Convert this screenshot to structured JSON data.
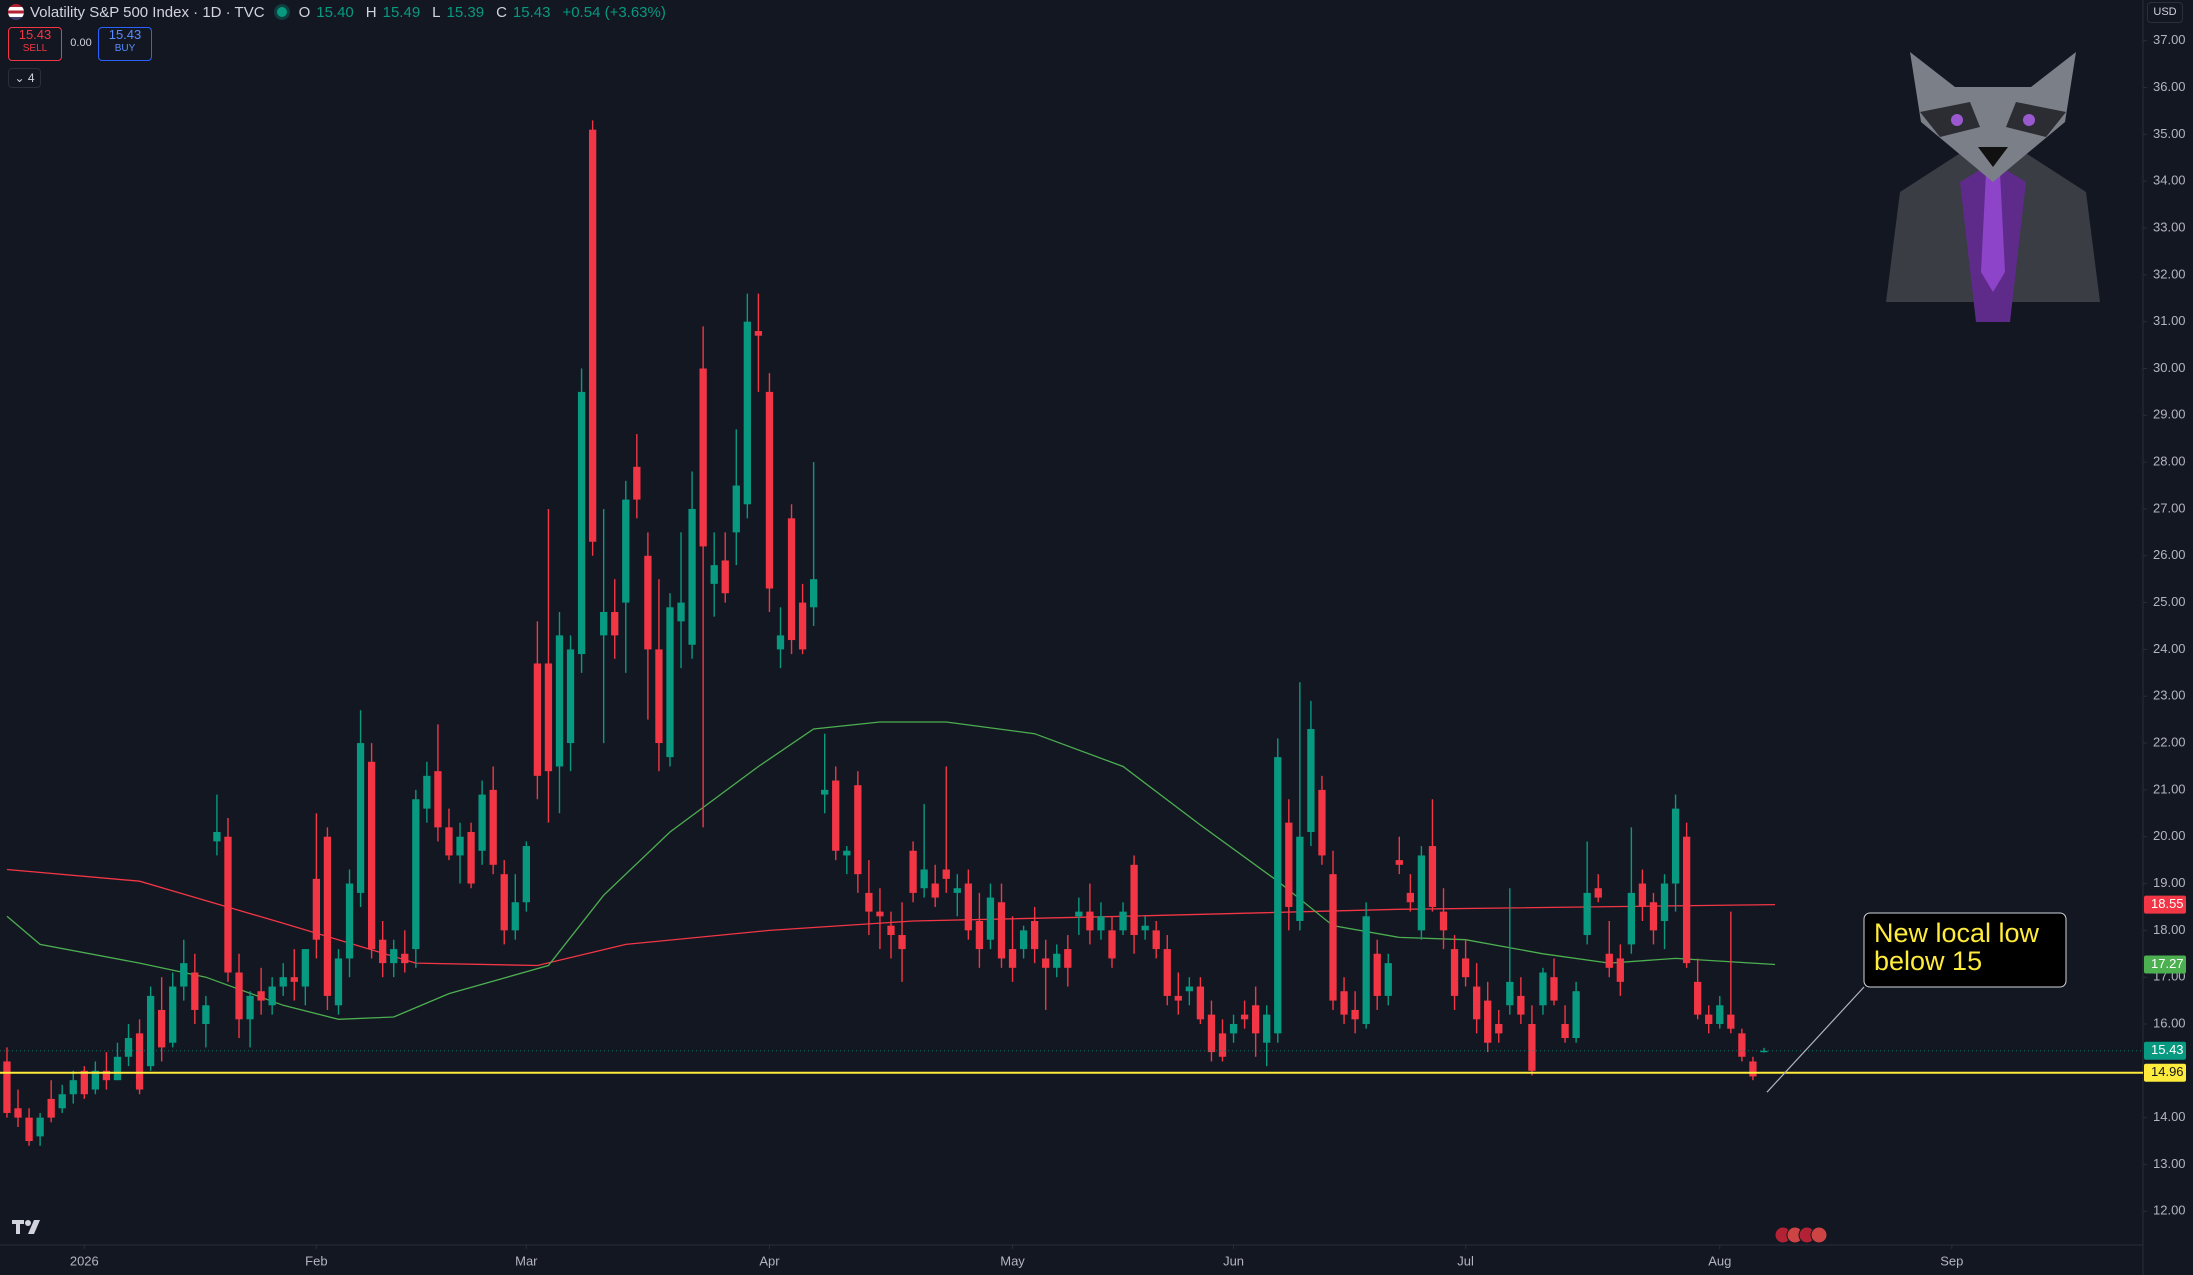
{
  "header": {
    "symbol": "Volatility S&P 500 Index · 1D · TVC",
    "ohlc": [
      {
        "key": "O",
        "value": "15.40"
      },
      {
        "key": "H",
        "value": "15.49"
      },
      {
        "key": "L",
        "value": "15.39"
      },
      {
        "key": "C",
        "value": "15.43"
      }
    ],
    "change": "+0.54 (+3.63%)"
  },
  "trade": {
    "sell_price": "15.43",
    "sell": "SELL",
    "spread": "0.00",
    "buy_price": "15.43",
    "buy": "BUY"
  },
  "indicators_count": "4",
  "currency": "USD",
  "chart_data": {
    "type": "candlestick",
    "up_color": "#089981",
    "down_color": "#f23645",
    "open": [
      15.2,
      14.2,
      14.0,
      13.6,
      14.4,
      14.2,
      14.5,
      15.0,
      14.6,
      15.0,
      14.8,
      15.3,
      15.8,
      15.1,
      16.3,
      15.6,
      16.8,
      17.1,
      16.0,
      19.9,
      20.0,
      17.1,
      16.1,
      16.7,
      16.4,
      16.8,
      17.0,
      16.8,
      19.1,
      20.0,
      16.4,
      17.4,
      18.8,
      21.6,
      17.8,
      17.3,
      17.5,
      17.6,
      20.6,
      21.4,
      20.2,
      19.6,
      20.1,
      19.7,
      21.0,
      19.2,
      18.0,
      18.6,
      23.7,
      23.7,
      21.5,
      22.0,
      23.9,
      35.1,
      24.3,
      24.8,
      25.0,
      27.9,
      26.0,
      24.0,
      21.7,
      24.6,
      24.1,
      30.0,
      25.4,
      25.9,
      26.5,
      27.1,
      30.8,
      29.5,
      24.0,
      26.8,
      25.0,
      24.9,
      20.9,
      21.2,
      19.6,
      21.1,
      18.8,
      18.4,
      18.1,
      17.9,
      19.7,
      18.9,
      19.0,
      19.3,
      18.8,
      19.0,
      18.2,
      17.8,
      18.6,
      17.6,
      17.6,
      18.2,
      17.4,
      17.2,
      17.6,
      18.3,
      18.4,
      18.0,
      18.0,
      18.0,
      19.4,
      18.0,
      18.0,
      17.6,
      16.6,
      16.7,
      16.8,
      16.2,
      15.8,
      15.8,
      16.2,
      16.4,
      15.6,
      15.8,
      20.3,
      18.2,
      20.1,
      21.0,
      19.2,
      16.7,
      16.3,
      16.0,
      17.5,
      16.6,
      19.5,
      18.8,
      18.0,
      19.8,
      18.4,
      17.6,
      17.4,
      16.8,
      16.5,
      16.0,
      16.4,
      16.6,
      16.0,
      16.4,
      17.0,
      16.0,
      15.7,
      17.9,
      18.9,
      17.5,
      17.4,
      17.7,
      19.0,
      18.6,
      18.2,
      19.0,
      20.0,
      16.9,
      16.2,
      16.0,
      16.2,
      15.8,
      15.2,
      15.4
    ],
    "high": [
      15.5,
      14.6,
      14.2,
      14.1,
      14.8,
      14.7,
      15.0,
      15.1,
      15.2,
      15.4,
      15.6,
      16.0,
      16.1,
      16.8,
      17.0,
      17.1,
      17.8,
      17.5,
      16.6,
      20.9,
      20.4,
      17.5,
      16.7,
      17.2,
      17.0,
      17.3,
      17.6,
      17.6,
      20.5,
      20.2,
      17.6,
      19.3,
      22.7,
      22.0,
      18.2,
      17.8,
      18.0,
      21.0,
      21.6,
      22.4,
      20.6,
      20.3,
      20.3,
      21.2,
      21.5,
      19.5,
      19.2,
      19.9,
      24.6,
      27.0,
      24.8,
      24.3,
      30.0,
      35.3,
      27.0,
      25.5,
      27.6,
      28.6,
      26.5,
      25.5,
      25.2,
      26.5,
      27.8,
      30.9,
      26.5,
      26.5,
      28.7,
      31.6,
      31.6,
      29.9,
      24.9,
      27.1,
      25.4,
      28.0,
      22.2,
      21.5,
      19.8,
      21.4,
      19.5,
      18.9,
      18.4,
      18.6,
      19.9,
      20.7,
      19.4,
      21.5,
      19.2,
      19.3,
      18.8,
      19.0,
      19.0,
      18.3,
      18.1,
      18.5,
      17.8,
      17.7,
      17.9,
      18.7,
      19.0,
      18.6,
      18.3,
      18.6,
      19.6,
      18.3,
      18.2,
      17.9,
      17.1,
      17.0,
      17.0,
      16.5,
      16.1,
      16.2,
      16.5,
      16.8,
      16.4,
      22.1,
      20.8,
      23.3,
      22.9,
      21.3,
      19.7,
      17.0,
      16.7,
      18.6,
      17.8,
      17.5,
      20.0,
      19.2,
      19.8,
      20.8,
      18.9,
      17.9,
      17.8,
      17.3,
      16.9,
      16.3,
      18.9,
      17.0,
      16.4,
      17.2,
      17.4,
      16.4,
      16.9,
      19.9,
      19.2,
      18.2,
      17.7,
      20.2,
      19.3,
      18.8,
      19.2,
      20.9,
      20.3,
      17.4,
      16.4,
      16.6,
      18.4,
      15.9,
      15.3,
      15.49
    ],
    "low": [
      14.0,
      13.8,
      13.4,
      13.4,
      13.9,
      14.1,
      14.3,
      14.4,
      14.5,
      14.6,
      14.8,
      15.1,
      14.5,
      15.0,
      15.2,
      15.5,
      16.5,
      16.0,
      15.5,
      19.6,
      16.9,
      15.7,
      15.5,
      16.2,
      16.2,
      16.6,
      16.5,
      16.4,
      17.4,
      16.3,
      16.2,
      17.0,
      18.5,
      17.4,
      17.0,
      17.0,
      17.1,
      17.2,
      20.3,
      19.9,
      19.5,
      19.0,
      18.9,
      19.4,
      19.2,
      17.7,
      17.8,
      18.4,
      20.8,
      20.3,
      20.5,
      21.4,
      23.5,
      26.0,
      22.0,
      23.8,
      23.5,
      26.8,
      22.5,
      21.4,
      21.5,
      23.6,
      23.8,
      20.2,
      24.7,
      25.0,
      25.8,
      26.8,
      29.5,
      24.8,
      23.6,
      23.9,
      23.9,
      24.5,
      20.5,
      19.5,
      19.2,
      18.8,
      17.9,
      17.6,
      17.4,
      16.9,
      18.6,
      18.7,
      18.5,
      18.8,
      18.3,
      17.8,
      17.2,
      17.6,
      17.2,
      16.9,
      17.4,
      17.3,
      16.3,
      17.0,
      16.8,
      17.9,
      17.7,
      17.8,
      17.2,
      17.9,
      17.5,
      17.8,
      17.4,
      16.4,
      16.2,
      16.4,
      16.0,
      15.2,
      15.2,
      15.6,
      15.9,
      15.3,
      15.1,
      15.6,
      18.0,
      18.0,
      19.8,
      19.4,
      16.3,
      16.0,
      15.8,
      15.9,
      16.3,
      16.4,
      19.2,
      18.4,
      17.8,
      18.4,
      17.6,
      16.3,
      16.8,
      15.8,
      15.4,
      15.6,
      16.2,
      16.0,
      14.9,
      16.2,
      16.4,
      15.6,
      15.6,
      17.7,
      18.6,
      17.0,
      16.6,
      17.5,
      18.2,
      17.7,
      17.6,
      18.4,
      17.2,
      16.1,
      15.8,
      15.9,
      15.8,
      15.2,
      14.8,
      15.39
    ],
    "close": [
      14.1,
      14.0,
      13.5,
      14.0,
      14.0,
      14.5,
      14.8,
      14.5,
      15.0,
      14.8,
      15.3,
      15.7,
      14.6,
      16.6,
      15.5,
      16.8,
      17.3,
      16.3,
      16.4,
      20.1,
      17.1,
      16.1,
      16.6,
      16.5,
      16.8,
      17.0,
      16.9,
      17.6,
      17.8,
      16.6,
      17.4,
      19.0,
      22.0,
      17.6,
      17.3,
      17.6,
      17.3,
      20.8,
      21.3,
      20.2,
      19.6,
      20.0,
      19.0,
      20.9,
      19.4,
      18.0,
      18.6,
      19.8,
      21.3,
      21.4,
      24.3,
      24.0,
      29.5,
      26.3,
      24.8,
      24.3,
      27.2,
      27.2,
      24.0,
      22.0,
      24.9,
      25.0,
      27.0,
      26.2,
      25.8,
      25.2,
      27.5,
      31.0,
      30.7,
      25.3,
      24.3,
      24.2,
      24.0,
      25.5,
      21.0,
      19.7,
      19.7,
      19.2,
      18.4,
      18.3,
      17.9,
      17.6,
      18.8,
      19.3,
      18.7,
      19.1,
      18.9,
      18.0,
      17.6,
      18.7,
      17.4,
      17.2,
      18.0,
      17.6,
      17.2,
      17.5,
      17.2,
      18.4,
      18.0,
      18.3,
      17.4,
      18.4,
      17.9,
      18.1,
      17.6,
      16.6,
      16.5,
      16.8,
      16.1,
      15.4,
      15.3,
      16.0,
      16.1,
      15.8,
      16.2,
      21.7,
      18.5,
      20.0,
      22.3,
      19.6,
      16.5,
      16.2,
      16.1,
      18.3,
      16.6,
      17.3,
      19.4,
      18.6,
      19.6,
      18.5,
      18.0,
      16.6,
      17.0,
      16.1,
      15.6,
      15.8,
      16.9,
      16.2,
      15.0,
      17.1,
      16.5,
      15.7,
      16.7,
      18.8,
      18.7,
      17.2,
      16.9,
      18.8,
      18.5,
      18.0,
      19.0,
      20.6,
      17.3,
      16.2,
      16.0,
      16.4,
      15.9,
      15.3,
      14.88,
      15.43
    ],
    "series": [
      {
        "color": "#f23645",
        "x": [
          0,
          12,
          25,
          37,
          48,
          56,
          69,
          82,
          101,
          126,
          160
        ],
        "values": [
          19.3,
          19.05,
          18.15,
          17.3,
          17.25,
          17.7,
          18.0,
          18.2,
          18.3,
          18.45,
          18.55
        ]
      },
      {
        "color": "#4caf50",
        "x": [
          0,
          3,
          12,
          18,
          25,
          30,
          35,
          40,
          49,
          54,
          60,
          68,
          73,
          79,
          85,
          93,
          101,
          108,
          115,
          120,
          126,
          132,
          139,
          145,
          151,
          160
        ],
        "values": [
          18.3,
          17.7,
          17.3,
          17.0,
          16.4,
          16.1,
          16.15,
          16.65,
          17.25,
          18.75,
          20.1,
          21.5,
          22.3,
          22.45,
          22.45,
          22.2,
          21.5,
          20.25,
          19.05,
          18.1,
          17.85,
          17.8,
          17.5,
          17.3,
          17.4,
          17.27
        ]
      }
    ],
    "xlim": [
      -0.63,
      193.3
    ],
    "xticks": [
      {
        "value": 7,
        "label": "2026"
      },
      {
        "value": 28,
        "label": "Feb"
      },
      {
        "value": 47,
        "label": "Mar"
      },
      {
        "value": 69,
        "label": "Apr"
      },
      {
        "value": 91,
        "label": "May"
      },
      {
        "value": 111,
        "label": "Jun"
      },
      {
        "value": 132,
        "label": "Jul"
      },
      {
        "value": 155,
        "label": "Aug"
      },
      {
        "value": 176,
        "label": "Sep"
      }
    ],
    "ylim": [
      11.28,
      37.87
    ],
    "yticks": [
      {
        "value": 12,
        "label": "12.00"
      },
      {
        "value": 13,
        "label": "13.00"
      },
      {
        "value": 14,
        "label": "14.00"
      },
      {
        "value": 15,
        "label": "15.00"
      },
      {
        "value": 16,
        "label": "16.00"
      },
      {
        "value": 17,
        "label": "17.00"
      },
      {
        "value": 18,
        "label": "18.00"
      },
      {
        "value": 19,
        "label": "19.00"
      },
      {
        "value": 20,
        "label": "20.00"
      },
      {
        "value": 21,
        "label": "21.00"
      },
      {
        "value": 22,
        "label": "22.00"
      },
      {
        "value": 23,
        "label": "23.00"
      },
      {
        "value": 24,
        "label": "24.00"
      },
      {
        "value": 25,
        "label": "25.00"
      },
      {
        "value": 26,
        "label": "26.00"
      },
      {
        "value": 27,
        "label": "27.00"
      },
      {
        "value": 28,
        "label": "28.00"
      },
      {
        "value": 29,
        "label": "29.00"
      },
      {
        "value": 30,
        "label": "30.00"
      },
      {
        "value": 31,
        "label": "31.00"
      },
      {
        "value": 32,
        "label": "32.00"
      },
      {
        "value": 33,
        "label": "33.00"
      },
      {
        "value": 34,
        "label": "34.00"
      },
      {
        "value": 35,
        "label": "35.00"
      },
      {
        "value": 36,
        "label": "36.00"
      },
      {
        "value": 37,
        "label": "37.00"
      }
    ],
    "grid": false,
    "price_lines": [
      {
        "value": 18.55,
        "label": "18.55",
        "color": "#f23645",
        "line": "none"
      },
      {
        "value": 17.27,
        "label": "17.27",
        "color": "#4caf50",
        "line": "none"
      },
      {
        "value": 15.43,
        "label": "15.43",
        "color": "#089981",
        "line": "dotted"
      },
      {
        "value": 14.96,
        "label": "14.96",
        "color": "#ffeb3b",
        "line": "solid"
      }
    ],
    "annotation": {
      "lines": [
        "New local low",
        "below 15"
      ],
      "color": "#ffeb3b"
    }
  }
}
